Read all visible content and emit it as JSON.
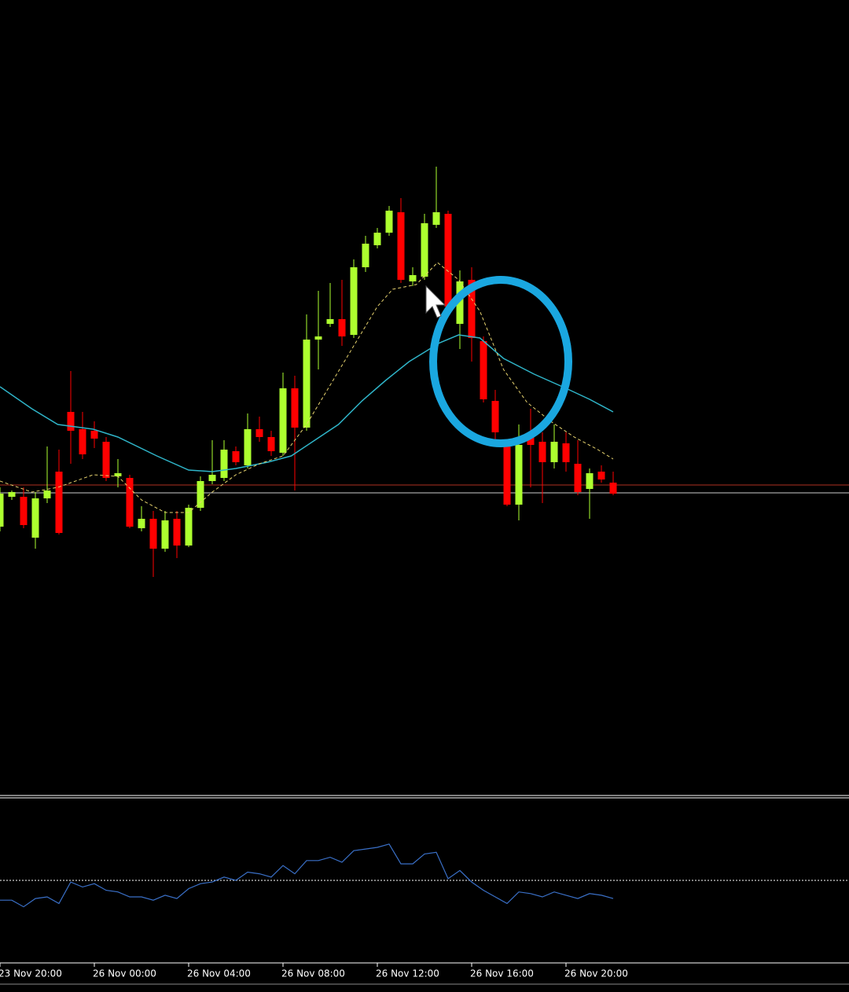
{
  "chart_data": {
    "type": "candlestick",
    "ylim": [
      0,
      1000
    ],
    "ohlc": [
      [
        330,
        380,
        324,
        372
      ],
      [
        368,
        376,
        364,
        374
      ],
      [
        368,
        380,
        328,
        332
      ],
      [
        316,
        374,
        302,
        366
      ],
      [
        366,
        432,
        360,
        376
      ],
      [
        400,
        428,
        320,
        322
      ],
      [
        476,
        528,
        410,
        452
      ],
      [
        454,
        476,
        416,
        422
      ],
      [
        452,
        464,
        430,
        442
      ],
      [
        438,
        444,
        388,
        392
      ],
      [
        394,
        416,
        380,
        398
      ],
      [
        392,
        396,
        328,
        330
      ],
      [
        328,
        356,
        324,
        340
      ],
      [
        340,
        350,
        266,
        302
      ],
      [
        302,
        350,
        298,
        338
      ],
      [
        340,
        350,
        290,
        306
      ],
      [
        306,
        358,
        304,
        354
      ],
      [
        354,
        394,
        350,
        388
      ],
      [
        388,
        440,
        384,
        396
      ],
      [
        392,
        440,
        388,
        428
      ],
      [
        426,
        432,
        408,
        412
      ],
      [
        408,
        474,
        404,
        454
      ],
      [
        454,
        470,
        438,
        444
      ],
      [
        444,
        452,
        420,
        426
      ],
      [
        424,
        526,
        420,
        506
      ],
      [
        506,
        522,
        376,
        456
      ],
      [
        456,
        600,
        452,
        568
      ],
      [
        568,
        630,
        530,
        572
      ],
      [
        588,
        640,
        584,
        594
      ],
      [
        594,
        644,
        560,
        572
      ],
      [
        574,
        670,
        570,
        660
      ],
      [
        660,
        700,
        654,
        690
      ],
      [
        688,
        710,
        684,
        704
      ],
      [
        704,
        738,
        700,
        732
      ],
      [
        730,
        748,
        640,
        644
      ],
      [
        642,
        660,
        636,
        650
      ],
      [
        648,
        728,
        644,
        716
      ],
      [
        714,
        788,
        710,
        730
      ],
      [
        728,
        732,
        606,
        610
      ],
      [
        588,
        656,
        556,
        642
      ],
      [
        644,
        660,
        540,
        570
      ],
      [
        566,
        572,
        488,
        492
      ],
      [
        490,
        504,
        432,
        450
      ],
      [
        434,
        440,
        356,
        358
      ],
      [
        358,
        460,
        338,
        434
      ],
      [
        444,
        480,
        380,
        434
      ],
      [
        438,
        450,
        360,
        412
      ],
      [
        412,
        460,
        404,
        438
      ],
      [
        436,
        450,
        400,
        412
      ],
      [
        410,
        440,
        370,
        374
      ],
      [
        378,
        404,
        340,
        398
      ],
      [
        400,
        408,
        386,
        390
      ],
      [
        386,
        400,
        370,
        372
      ]
    ],
    "up_color": "#adff2f",
    "down_color": "#ff0000",
    "series": [
      {
        "color": "#2fb4c8",
        "dashed": false,
        "x": [
          0,
          2.7,
          4.9,
          7.9,
          10,
          13.3,
          16,
          18,
          20,
          22.7,
          24.7,
          26.7,
          28.7,
          30.7,
          32.7,
          34.7,
          37.3,
          38.9,
          40.7,
          42.7,
          45.3,
          48,
          50,
          52
        ],
        "values": [
          508,
          480,
          460,
          454,
          444,
          420,
          402,
          400,
          404,
          412,
          420,
          440,
          460,
          490,
          516,
          540,
          564,
          574,
          570,
          544,
          524,
          506,
          492,
          476
        ]
      },
      {
        "color": "#e6d26e",
        "dashed": true,
        "x": [
          0,
          2.7,
          4.9,
          7.9,
          10,
          12,
          14,
          16,
          18,
          20,
          22,
          24,
          26,
          28,
          30,
          32,
          33.3,
          35.3,
          37.1,
          38.9,
          40.7,
          42.7,
          44.7,
          46.7,
          48.7,
          50.7,
          52
        ],
        "values": [
          388,
          374,
          380,
          396,
          394,
          364,
          348,
          348,
          374,
          396,
          410,
          420,
          460,
          510,
          560,
          610,
          632,
          638,
          666,
          644,
          604,
          530,
          488,
          464,
          444,
          428,
          416
        ]
      }
    ],
    "price_lines": [
      {
        "value": 383,
        "color": "#b03020"
      },
      {
        "value": 373,
        "color": "#cccccc"
      }
    ],
    "indicator": {
      "ylim": [
        0,
        100
      ],
      "level": 50,
      "color": "#3a70c8",
      "values": [
        38,
        38,
        34,
        39,
        40,
        36,
        49,
        46,
        48,
        44,
        43,
        40,
        40,
        38,
        41,
        39,
        45,
        48,
        49,
        52,
        50,
        55,
        54,
        52,
        59,
        54,
        62,
        62,
        64,
        61,
        68,
        69,
        70,
        72,
        60,
        60,
        66,
        67,
        51,
        56,
        49,
        44,
        40,
        36,
        43,
        42,
        40,
        43,
        41,
        39,
        42,
        41,
        39
      ]
    },
    "xticks": [
      {
        "value": 0,
        "label": "23 Nov 20:00"
      },
      {
        "value": 8,
        "label": "26 Nov 00:00"
      },
      {
        "value": 16,
        "label": "26 Nov 04:00"
      },
      {
        "value": 24,
        "label": "26 Nov 08:00"
      },
      {
        "value": 32,
        "label": "26 Nov 12:00"
      },
      {
        "value": 40,
        "label": "26 Nov 16:00"
      },
      {
        "value": 48,
        "label": "26 Nov 20:00"
      }
    ]
  }
}
